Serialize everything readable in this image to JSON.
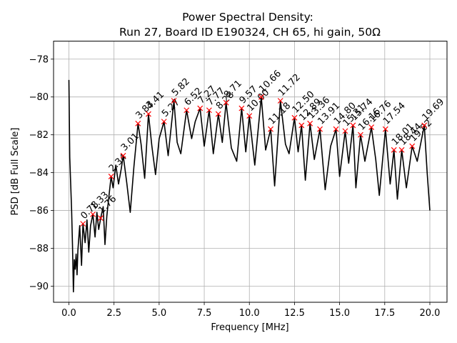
{
  "chart_data": {
    "type": "line",
    "title": "Power Spectral Density:",
    "subtitle": "Run 27, Board ID E190324, CH 65, hi gain, 50Ω",
    "xlabel": "Frequency [MHz]",
    "ylabel": "PSD [dB Full Scale]",
    "xlim": [
      -0.85,
      20.95
    ],
    "ylim": [
      -90.85,
      -77.05
    ],
    "xticks": [
      0.0,
      2.5,
      5.0,
      7.5,
      10.0,
      12.5,
      15.0,
      17.5,
      20.0
    ],
    "xtick_labels": [
      "0.0",
      "2.5",
      "5.0",
      "7.5",
      "10.0",
      "12.5",
      "15.0",
      "17.5",
      "20.0"
    ],
    "yticks": [
      -90,
      -88,
      -86,
      -84,
      -82,
      -80,
      -78
    ],
    "ytick_labels": [
      "−90",
      "−88",
      "−86",
      "−84",
      "−82",
      "−80",
      "−78"
    ],
    "grid": true,
    "line_color": "#000000",
    "marker_color": "#ff0000",
    "series": [
      {
        "x": [
          0.0,
          0.05,
          0.1,
          0.15,
          0.2,
          0.25,
          0.3,
          0.35,
          0.4,
          0.45,
          0.5,
          0.6,
          0.7,
          0.78,
          0.9,
          1.0,
          1.1,
          1.2,
          1.33,
          1.45,
          1.55,
          1.65,
          1.76,
          1.9,
          2.0,
          2.1,
          2.2,
          2.34,
          2.45,
          2.6,
          2.75,
          2.9,
          3.01,
          3.2,
          3.4,
          3.6,
          3.83,
          4.0,
          4.2,
          4.41,
          4.6,
          4.8,
          5.0,
          5.27,
          5.5,
          5.82,
          6.0,
          6.2,
          6.52,
          6.8,
          7.0,
          7.27,
          7.5,
          7.77,
          8.0,
          8.28,
          8.5,
          8.71,
          9.0,
          9.3,
          9.57,
          9.8,
          10.0,
          10.3,
          10.66,
          10.9,
          11.18,
          11.4,
          11.72,
          12.0,
          12.2,
          12.5,
          12.7,
          12.89,
          13.1,
          13.36,
          13.6,
          13.91,
          14.2,
          14.5,
          14.8,
          15.0,
          15.31,
          15.5,
          15.74,
          15.9,
          16.16,
          16.4,
          16.76,
          17.0,
          17.2,
          17.54,
          17.8,
          18.01,
          18.2,
          18.44,
          18.7,
          19.02,
          19.3,
          19.69,
          19.85,
          20.0
        ],
        "y": [
          -79.1,
          -83.2,
          -84.6,
          -86.0,
          -87.8,
          -90.3,
          -88.6,
          -89.1,
          -88.3,
          -89.4,
          -88.1,
          -86.8,
          -88.9,
          -86.7,
          -87.7,
          -86.5,
          -88.2,
          -86.8,
          -86.2,
          -87.4,
          -86.1,
          -87.0,
          -86.4,
          -85.8,
          -87.8,
          -86.3,
          -85.4,
          -84.2,
          -84.8,
          -83.6,
          -84.6,
          -83.8,
          -83.1,
          -84.5,
          -86.1,
          -83.7,
          -81.4,
          -82.5,
          -84.3,
          -80.9,
          -82.6,
          -84.1,
          -82.2,
          -81.3,
          -83.1,
          -80.2,
          -82.4,
          -83.0,
          -80.7,
          -82.2,
          -81.3,
          -80.6,
          -82.6,
          -80.7,
          -83.0,
          -80.9,
          -82.4,
          -80.3,
          -82.7,
          -83.4,
          -80.6,
          -82.9,
          -81.0,
          -83.6,
          -80.0,
          -82.8,
          -81.7,
          -84.7,
          -80.2,
          -82.5,
          -83.0,
          -81.1,
          -82.9,
          -81.5,
          -84.4,
          -81.4,
          -83.3,
          -81.7,
          -84.9,
          -82.6,
          -81.7,
          -84.2,
          -81.8,
          -83.5,
          -81.5,
          -84.8,
          -82.0,
          -83.4,
          -81.6,
          -83.3,
          -85.2,
          -81.7,
          -84.6,
          -82.8,
          -85.4,
          -82.8,
          -84.8,
          -82.6,
          -83.4,
          -81.5,
          -84.0,
          -86.0
        ]
      }
    ],
    "peaks": [
      {
        "label": "0.78",
        "x": 0.78,
        "y": -86.7
      },
      {
        "label": "1.33",
        "x": 1.33,
        "y": -86.2
      },
      {
        "label": "1.76",
        "x": 1.76,
        "y": -86.4
      },
      {
        "label": "2.34",
        "x": 2.34,
        "y": -84.2
      },
      {
        "label": "3.01",
        "x": 3.01,
        "y": -83.1
      },
      {
        "label": "3.83",
        "x": 3.83,
        "y": -81.4
      },
      {
        "label": "4.41",
        "x": 4.41,
        "y": -80.9
      },
      {
        "label": "5.27",
        "x": 5.27,
        "y": -81.3
      },
      {
        "label": "5.82",
        "x": 5.82,
        "y": -80.2
      },
      {
        "label": "6.52",
        "x": 6.52,
        "y": -80.7
      },
      {
        "label": "7.27",
        "x": 7.27,
        "y": -80.6
      },
      {
        "label": "7.77",
        "x": 7.77,
        "y": -80.7
      },
      {
        "label": "8.28",
        "x": 8.28,
        "y": -80.9
      },
      {
        "label": "8.71",
        "x": 8.71,
        "y": -80.3
      },
      {
        "label": "9.57",
        "x": 9.57,
        "y": -80.6
      },
      {
        "label": "10.00",
        "x": 10.0,
        "y": -81.0
      },
      {
        "label": "10.66",
        "x": 10.66,
        "y": -80.0
      },
      {
        "label": "11.18",
        "x": 11.18,
        "y": -81.7
      },
      {
        "label": "11.72",
        "x": 11.72,
        "y": -80.2
      },
      {
        "label": "12.50",
        "x": 12.5,
        "y": -81.1
      },
      {
        "label": "12.89",
        "x": 12.89,
        "y": -81.5
      },
      {
        "label": "13.36",
        "x": 13.36,
        "y": -81.4
      },
      {
        "label": "13.91",
        "x": 13.91,
        "y": -81.7
      },
      {
        "label": "14.80",
        "x": 14.8,
        "y": -81.7
      },
      {
        "label": "15.31",
        "x": 15.31,
        "y": -81.8
      },
      {
        "label": "15.74",
        "x": 15.74,
        "y": -81.5
      },
      {
        "label": "16.16",
        "x": 16.16,
        "y": -82.0
      },
      {
        "label": "16.76",
        "x": 16.76,
        "y": -81.6
      },
      {
        "label": "17.54",
        "x": 17.54,
        "y": -81.7
      },
      {
        "label": "18.01",
        "x": 18.01,
        "y": -82.8
      },
      {
        "label": "18.44",
        "x": 18.44,
        "y": -82.8
      },
      {
        "label": "19.02",
        "x": 19.02,
        "y": -82.6
      },
      {
        "label": "19.69",
        "x": 19.69,
        "y": -81.5
      }
    ]
  }
}
